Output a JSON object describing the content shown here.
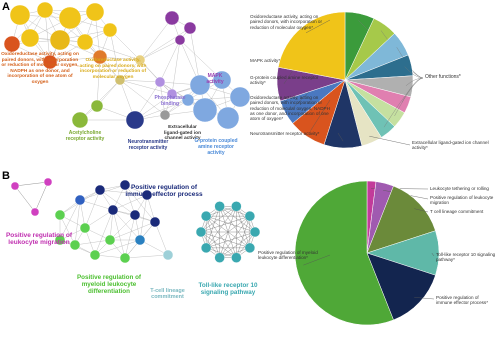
{
  "panels": [
    {
      "label": "A",
      "network_labels": [
        "Oxidoreductase activity, acting on paired donors, with incorporation or reduction of molecular oxygen, NADPH as one donor, and incorporation of one atom of oxygen",
        "Oxidoreductase activity, acting on paired donors, with incorporation or reduction of molecular oxygen",
        "Phosphatase binding",
        "MAPK activity",
        "Acetylcholine receptor activity",
        "Neurotransmitter receptor activity",
        "Extracellular ligand-gated ion channel activity",
        "G-protein coupled amine receptor activity"
      ]
    },
    {
      "label": "B",
      "network_labels": [
        "Positive regulation of leukocyte migration",
        "Positive regulation of immune effector process",
        "Positive regulation of myeloid leukocyte differentiation",
        "T-cell lineage commitment",
        "Toll-like receptor 10 signaling pathway"
      ]
    }
  ],
  "chart_data": [
    {
      "type": "pie",
      "categories": [
        null,
        null,
        null,
        null,
        null,
        null,
        null,
        null,
        "Extracellular ligand-gated ion channel activity*",
        "Neurotransmitter receptor activity*",
        "Oxidoreductase activity, acting on paired donors, with incorporation or reduction of molecular oxygen, NADPH as one donor, and incorporation of one atom of oxygen*",
        "G-protein coupled amine receptor activity*",
        "MAPK activity*",
        "Oxidoreductase activity, acting on paired donors, with incorporation or reduction of molecular oxygen*"
      ],
      "values": [
        7,
        6,
        6,
        5,
        5,
        4,
        4,
        4,
        5,
        9,
        9,
        6,
        8,
        22
      ],
      "colors": [
        "#3b9b3b",
        "#a6c94a",
        "#7fb8d8",
        "#2d6e8e",
        "#b0b0b0",
        "#e07fb0",
        "#c5e0a0",
        "#6fc2b5",
        "#e6e4c4",
        "#1f3566",
        "#d9541e",
        "#4a78c0",
        "#7a3e8a",
        "#f0c419"
      ],
      "annotation": "Other functions*"
    },
    {
      "type": "pie",
      "categories": [
        "Leukocyte tethering or rolling",
        "Positive regulation of leukocyte migration",
        "T cell lineage commitment",
        "Toll-like receptor 10 signaling pathway*",
        "Positive regulation of immune effector process*",
        "Positive regulation of myeloid leukocyte differentiation*"
      ],
      "values": [
        2,
        4,
        14,
        10,
        14,
        56
      ],
      "colors": [
        "#c23b9a",
        "#a05ab0",
        "#6b8a3a",
        "#5fb8a8",
        "#13254f",
        "#4fa837"
      ]
    }
  ]
}
